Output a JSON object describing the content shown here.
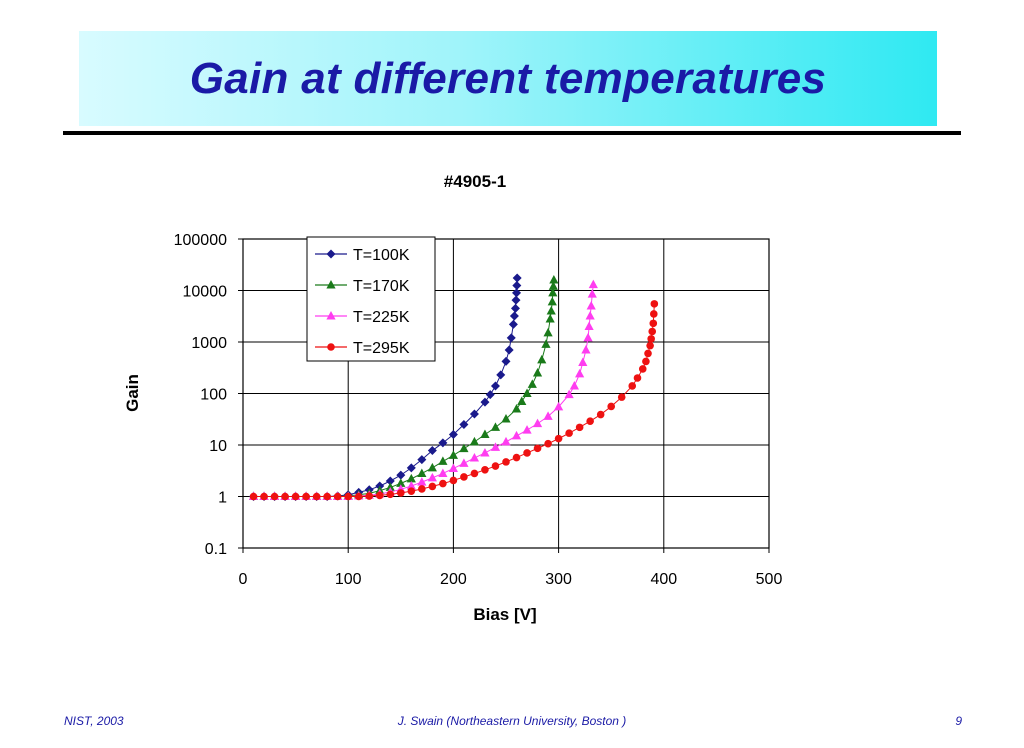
{
  "slide": {
    "title": "Gain at different temperatures",
    "footer_left": "NIST, 2003",
    "footer_center": "J. Swain (Northeastern University, Boston )",
    "footer_right": "9",
    "accent_color": "#1a1aa6"
  },
  "chart_data": {
    "type": "scatter",
    "title": "#4905-1",
    "xlabel": "Bias [V]",
    "ylabel": "Gain",
    "xlim": [
      0,
      500
    ],
    "ylim": [
      0.1,
      100000
    ],
    "y_scale": "log",
    "x_ticks": [
      "0",
      "100",
      "200",
      "300",
      "400",
      "500"
    ],
    "y_ticks": [
      "100000",
      "10000",
      "1000",
      "100",
      "10",
      "1",
      "0.1"
    ],
    "grid": true,
    "legend_position": "top-left inside plot",
    "series": [
      {
        "name": "T=100K",
        "color": "#1a1a8c",
        "marker": "diamond",
        "x": [
          10,
          20,
          30,
          40,
          50,
          60,
          70,
          80,
          90,
          100,
          110,
          120,
          130,
          140,
          150,
          160,
          170,
          180,
          190,
          200,
          210,
          220,
          230,
          235,
          240,
          245,
          250,
          253,
          255,
          257,
          258,
          259,
          259.5,
          260,
          260.3,
          260.6
        ],
        "y": [
          1,
          1,
          1,
          1,
          1,
          1,
          1,
          1,
          1.02,
          1.08,
          1.2,
          1.35,
          1.6,
          2.0,
          2.6,
          3.6,
          5.2,
          7.8,
          11,
          16,
          25,
          40,
          68,
          95,
          140,
          230,
          420,
          700,
          1200,
          2200,
          3200,
          4500,
          6500,
          9000,
          12500,
          17500
        ]
      },
      {
        "name": "T=170K",
        "color": "#1a7a1a",
        "marker": "triangle",
        "x": [
          10,
          20,
          30,
          40,
          50,
          60,
          70,
          80,
          90,
          100,
          110,
          120,
          130,
          140,
          150,
          160,
          170,
          180,
          190,
          200,
          210,
          220,
          230,
          240,
          250,
          260,
          265,
          270,
          275,
          280,
          284,
          288,
          290,
          292,
          293,
          294,
          294.5,
          295,
          295.5
        ],
        "y": [
          1,
          1,
          1,
          1,
          1,
          1,
          1,
          1,
          1,
          1.02,
          1.08,
          1.15,
          1.3,
          1.5,
          1.8,
          2.2,
          2.8,
          3.6,
          4.8,
          6.3,
          8.5,
          11.5,
          16,
          22,
          32,
          50,
          70,
          100,
          150,
          250,
          450,
          900,
          1500,
          2800,
          4000,
          6000,
          9000,
          12000,
          16000
        ]
      },
      {
        "name": "T=225K",
        "color": "#ff3df0",
        "marker": "triangle",
        "x": [
          10,
          20,
          30,
          40,
          50,
          60,
          70,
          80,
          90,
          100,
          110,
          120,
          130,
          140,
          150,
          160,
          170,
          180,
          190,
          200,
          210,
          220,
          230,
          240,
          250,
          260,
          270,
          280,
          290,
          300,
          310,
          315,
          320,
          323,
          326,
          328,
          329,
          330,
          331,
          332,
          333
        ],
        "y": [
          1,
          1,
          1,
          1,
          1,
          1,
          1,
          1,
          1,
          1,
          1.02,
          1.06,
          1.12,
          1.22,
          1.38,
          1.6,
          1.9,
          2.3,
          2.8,
          3.5,
          4.4,
          5.6,
          7,
          9,
          11.5,
          15,
          19.5,
          26,
          36,
          55,
          95,
          140,
          240,
          400,
          700,
          1200,
          2000,
          3200,
          5000,
          8500,
          13000
        ]
      },
      {
        "name": "T=295K",
        "color": "#ee1111",
        "marker": "circle",
        "x": [
          10,
          20,
          30,
          40,
          50,
          60,
          70,
          80,
          90,
          100,
          110,
          120,
          130,
          140,
          150,
          160,
          170,
          180,
          190,
          200,
          210,
          220,
          230,
          240,
          250,
          260,
          270,
          280,
          290,
          300,
          310,
          320,
          330,
          340,
          350,
          360,
          370,
          375,
          380,
          383,
          385,
          387,
          388,
          389,
          390,
          390.5,
          391
        ],
        "y": [
          1,
          1,
          1,
          1,
          1,
          1,
          1,
          1,
          1,
          1,
          1,
          1.02,
          1.05,
          1.1,
          1.17,
          1.27,
          1.4,
          1.57,
          1.78,
          2.05,
          2.4,
          2.8,
          3.3,
          3.9,
          4.7,
          5.7,
          7,
          8.6,
          10.6,
          13.3,
          17,
          22,
          29,
          39,
          56,
          85,
          140,
          200,
          300,
          420,
          600,
          850,
          1150,
          1600,
          2300,
          3500,
          5500
        ]
      }
    ]
  }
}
